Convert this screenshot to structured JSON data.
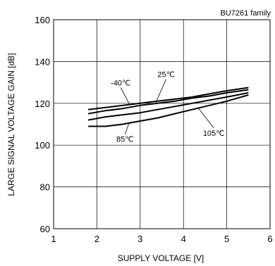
{
  "chart_data": {
    "type": "line",
    "title": "BU7261 family",
    "xlabel": "SUPPLY VOLTAGE [V]",
    "ylabel": "LARGE SIGNAL VOLTAGE GAIN [dB]",
    "xlim": [
      1,
      6
    ],
    "ylim": [
      60,
      160
    ],
    "xticks": [
      1,
      2,
      3,
      4,
      5,
      6
    ],
    "yticks": [
      60,
      80,
      100,
      120,
      140,
      160
    ],
    "grid": true,
    "legend": "none",
    "series": [
      {
        "name": "-40℃",
        "x": [
          1.8,
          2.2,
          2.6,
          3.0,
          3.4,
          3.8,
          4.2,
          4.6,
          5.0,
          5.5
        ],
        "values": [
          117,
          118,
          119,
          120,
          121,
          122,
          123,
          124.5,
          126,
          127.5
        ]
      },
      {
        "name": "25℃",
        "x": [
          1.8,
          2.2,
          2.6,
          3.0,
          3.4,
          3.8,
          4.2,
          4.6,
          5.0,
          5.5
        ],
        "values": [
          115,
          116.5,
          117.5,
          119,
          120,
          121,
          122.5,
          123.5,
          125,
          126.5
        ]
      },
      {
        "name": "85℃",
        "x": [
          1.8,
          2.2,
          2.6,
          3.0,
          3.4,
          3.8,
          4.2,
          4.6,
          5.0,
          5.5
        ],
        "values": [
          112,
          113.5,
          114.5,
          115.5,
          117,
          118.5,
          120,
          121.5,
          123,
          125
        ]
      },
      {
        "name": "105℃",
        "x": [
          1.8,
          2.2,
          2.6,
          3.0,
          3.4,
          3.8,
          4.2,
          4.6,
          5.0,
          5.5
        ],
        "values": [
          109,
          109,
          110,
          111.5,
          113,
          115,
          117,
          119,
          121,
          124
        ]
      }
    ],
    "annotations": [
      {
        "series": 0,
        "text": "-40℃",
        "at_x": 2.55,
        "at_y": 128.5,
        "anchor": "middle",
        "leader_to_x": 2.75,
        "leader_to_y": 119.6
      },
      {
        "series": 1,
        "text": "25℃",
        "at_x": 3.6,
        "at_y": 132.5,
        "anchor": "middle",
        "leader_to_x": 3.35,
        "leader_to_y": 119.9
      },
      {
        "series": 2,
        "text": "85℃",
        "at_x": 2.65,
        "at_y": 101.5,
        "anchor": "middle",
        "leader_to_x": 2.75,
        "leader_to_y": 111.0
      },
      {
        "series": 3,
        "text": "105℃",
        "at_x": 4.7,
        "at_y": 104.5,
        "anchor": "middle",
        "leader_to_x": 4.35,
        "leader_to_y": 117.5
      }
    ]
  }
}
